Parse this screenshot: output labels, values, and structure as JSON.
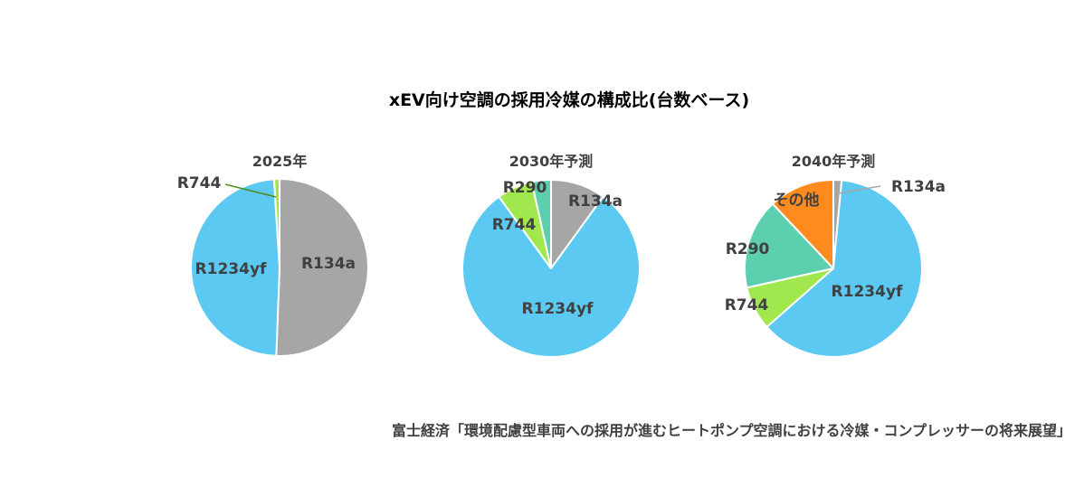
{
  "chart_title": "xEV向け空調の採用冷媒の構成比(台数ベース)",
  "source_note": "富士経済「環境配慮型車両への採用が進むヒートポンプ空調における冷媒・コンプレッサーの将来展望」",
  "colors": {
    "R134a": "#a6a6a6",
    "R1234yf": "#5bc9f2",
    "R744": "#a0e84e",
    "R290": "#5ccfae",
    "その他": "#ff8b1f",
    "leader_R744": "#4d8a1a",
    "leader_R134a": "#a6a6a6"
  },
  "chart_data": [
    {
      "type": "pie",
      "title": "2025年",
      "start": "top",
      "direction": "clockwise",
      "slices": [
        {
          "label": "R134a",
          "value": 50.6
        },
        {
          "label": "R1234yf",
          "value": 48.4
        },
        {
          "label": "R744",
          "value": 1.0
        }
      ]
    },
    {
      "type": "pie",
      "title": "2030年予測",
      "start": "top",
      "direction": "clockwise",
      "slices": [
        {
          "label": "R134a",
          "value": 10.0
        },
        {
          "label": "R1234yf",
          "value": 80.0
        },
        {
          "label": "R744",
          "value": 6.5
        },
        {
          "label": "R290",
          "value": 3.5
        }
      ]
    },
    {
      "type": "pie",
      "title": "2040年予測",
      "start": "top",
      "direction": "clockwise",
      "slices": [
        {
          "label": "R134a",
          "value": 1.5
        },
        {
          "label": "R1234yf",
          "value": 62.0
        },
        {
          "label": "R744",
          "value": 8.0
        },
        {
          "label": "R290",
          "value": 16.5
        },
        {
          "label": "その他",
          "value": 12.0
        }
      ]
    }
  ]
}
